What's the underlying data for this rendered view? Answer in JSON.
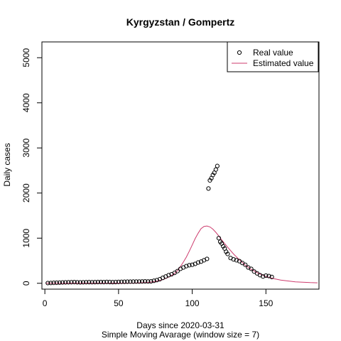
{
  "chart_data": {
    "type": "scatter",
    "title": "Kyrgyzstan / Gompertz",
    "xlabel": "Days since 2020-03-31",
    "xlabel_sub": "Simple Moving Avarage (window size = 7)",
    "ylabel": "Daily cases",
    "xlim": [
      -2,
      186
    ],
    "ylim": [
      -130,
      5350
    ],
    "xticks": [
      0,
      50,
      100,
      150
    ],
    "yticks": [
      0,
      1000,
      2000,
      3000,
      4000,
      5000
    ],
    "legend": {
      "position": "top-right",
      "entries": [
        {
          "label": "Real value",
          "marker": "open-circle",
          "color": "#000000"
        },
        {
          "label": "Estimated value",
          "marker": "line",
          "color": "#cd3b6d"
        }
      ]
    },
    "series": [
      {
        "name": "Real value",
        "kind": "points",
        "color": "#000000",
        "x": [
          2,
          4,
          6,
          8,
          10,
          12,
          14,
          16,
          18,
          20,
          22,
          24,
          26,
          28,
          30,
          32,
          34,
          36,
          38,
          40,
          42,
          44,
          46,
          48,
          50,
          52,
          54,
          56,
          58,
          60,
          62,
          64,
          66,
          68,
          70,
          72,
          74,
          76,
          78,
          80,
          82,
          84,
          86,
          88,
          90,
          92,
          94,
          96,
          98,
          100,
          102,
          104,
          106,
          108,
          110,
          111,
          112,
          113,
          114,
          115,
          116,
          117,
          118,
          119,
          120,
          121,
          122,
          123,
          124,
          126,
          128,
          130,
          132,
          134,
          136,
          138,
          140,
          142,
          144,
          146,
          148,
          150,
          152,
          154
        ],
        "y": [
          5,
          7,
          10,
          12,
          15,
          18,
          20,
          22,
          24,
          26,
          22,
          20,
          22,
          24,
          25,
          24,
          25,
          27,
          28,
          26,
          30,
          27,
          25,
          27,
          30,
          32,
          33,
          35,
          36,
          37,
          38,
          38,
          40,
          42,
          40,
          42,
          55,
          70,
          90,
          120,
          150,
          180,
          200,
          230,
          270,
          320,
          350,
          380,
          400,
          410,
          430,
          460,
          480,
          510,
          540,
          2100,
          2280,
          2330,
          2400,
          2450,
          2520,
          2600,
          1000,
          920,
          880,
          820,
          770,
          700,
          650,
          560,
          530,
          510,
          490,
          450,
          410,
          350,
          320,
          260,
          220,
          180,
          150,
          170,
          160,
          140
        ]
      },
      {
        "name": "Estimated value",
        "kind": "line",
        "color": "#cd3b6d",
        "x": [
          1,
          20,
          40,
          60,
          70,
          75,
          80,
          85,
          88,
          90,
          92,
          94,
          96,
          98,
          100,
          102,
          104,
          106,
          108,
          110,
          112,
          114,
          116,
          118,
          120,
          124,
          128,
          132,
          136,
          140,
          145,
          150,
          155,
          160,
          170,
          180,
          185
        ],
        "y": [
          0,
          0,
          1,
          4,
          18,
          40,
          80,
          150,
          220,
          280,
          370,
          470,
          580,
          710,
          850,
          990,
          1110,
          1210,
          1260,
          1270,
          1250,
          1200,
          1130,
          1050,
          960,
          800,
          650,
          520,
          400,
          310,
          220,
          150,
          105,
          70,
          32,
          15,
          10
        ]
      }
    ]
  }
}
